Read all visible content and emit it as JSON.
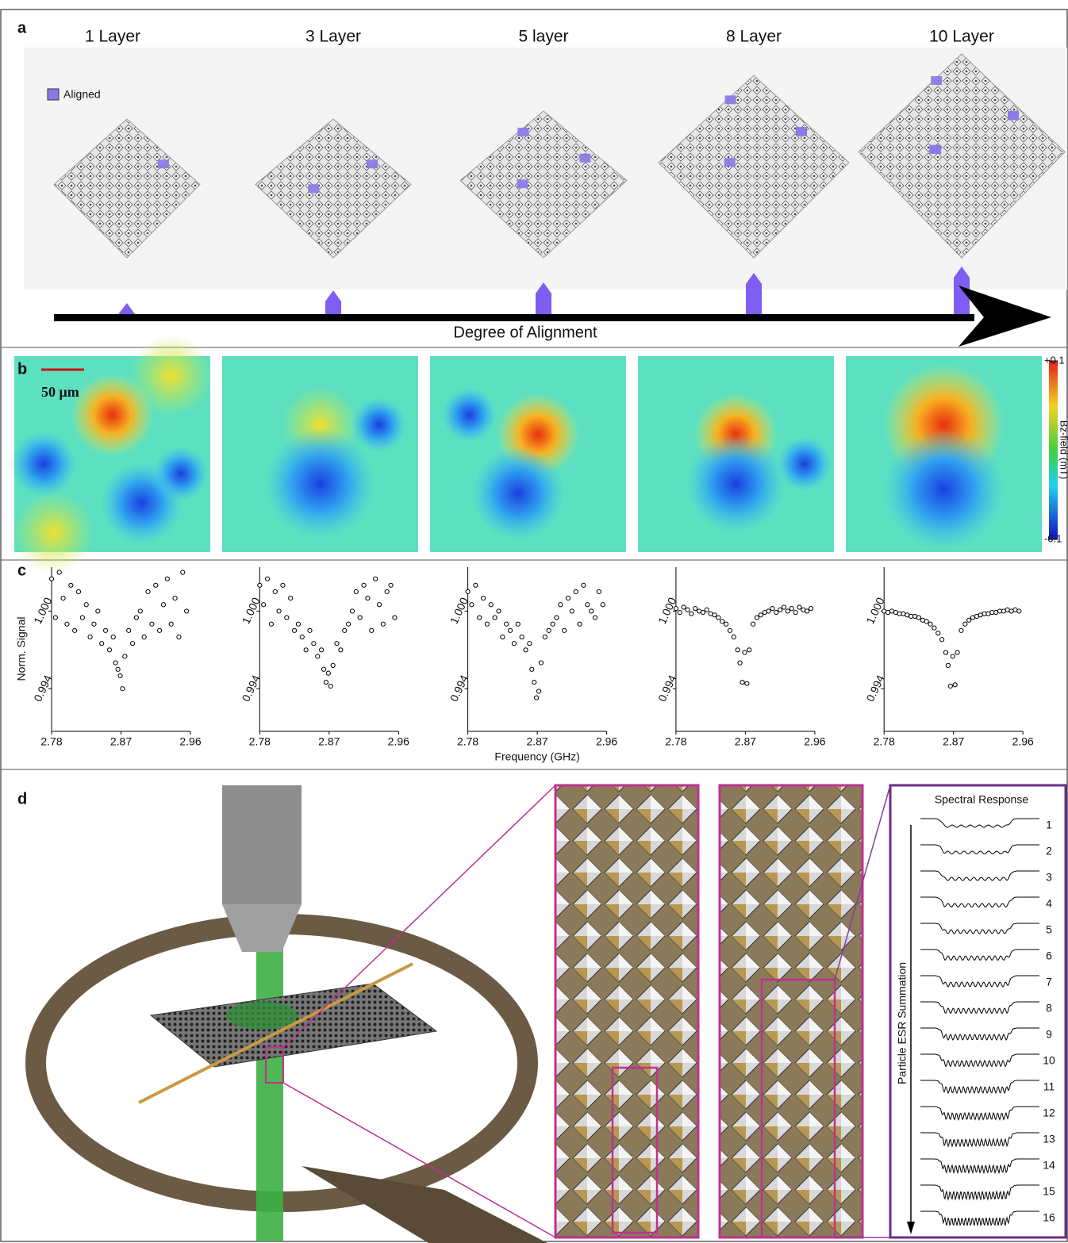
{
  "panel_labels": [
    "a",
    "b",
    "c",
    "d"
  ],
  "alignment": {
    "layers": [
      "1 Layer",
      "3 Layer",
      "5 layer",
      "8 Layer",
      "10 Layer"
    ],
    "legend": "Aligned",
    "axis_label": "Degree of Alignment"
  },
  "field_maps": {
    "scale_bar": "50 μm",
    "colorbar_label": "Bz-field (mT)",
    "colorbar_ticks": [
      {
        "value": 0.1,
        "label": "+0.1"
      },
      -0.1
    ]
  },
  "chart_data": [
    {
      "type": "scatter",
      "ylabel": "Norm. Signal",
      "x": [
        2.78,
        2.785,
        2.79,
        2.795,
        2.8,
        2.805,
        2.81,
        2.815,
        2.82,
        2.825,
        2.83,
        2.835,
        2.84,
        2.845,
        2.85,
        2.855,
        2.86,
        2.863,
        2.866,
        2.869,
        2.872,
        2.875,
        2.88,
        2.885,
        2.89,
        2.895,
        2.9,
        2.905,
        2.91,
        2.915,
        2.92,
        2.925,
        2.93,
        2.935,
        2.94,
        2.945,
        2.95,
        2.955
      ],
      "values": [
        1.0025,
        0.9995,
        1.003,
        1.001,
        0.999,
        1.002,
        0.9985,
        1.0015,
        0.9995,
        1.0005,
        0.998,
        0.999,
        1.0,
        0.9975,
        0.9985,
        0.997,
        0.998,
        0.996,
        0.9955,
        0.995,
        0.994,
        0.9965,
        0.9985,
        0.9975,
        0.9995,
        1.0,
        0.998,
        1.0015,
        0.999,
        1.002,
        0.9985,
        1.0005,
        1.0025,
        0.999,
        1.001,
        0.998,
        1.003,
        1.0
      ],
      "xlim": [
        2.78,
        2.96
      ],
      "ylim": [
        0.9907,
        1.0034
      ],
      "xticks": [
        2.78,
        2.87,
        2.96
      ],
      "yticks": [
        {
          "value": 1.0,
          "label": "1.000"
        },
        0.994
      ]
    },
    {
      "type": "scatter",
      "x": [
        2.78,
        2.785,
        2.79,
        2.795,
        2.8,
        2.805,
        2.81,
        2.815,
        2.82,
        2.825,
        2.83,
        2.835,
        2.84,
        2.845,
        2.85,
        2.855,
        2.86,
        2.863,
        2.866,
        2.869,
        2.872,
        2.875,
        2.88,
        2.885,
        2.89,
        2.895,
        2.9,
        2.905,
        2.91,
        2.915,
        2.92,
        2.925,
        2.93,
        2.935,
        2.94,
        2.945,
        2.95,
        2.955
      ],
      "values": [
        1.002,
        1.0005,
        1.0025,
        0.999,
        1.0015,
        1.0,
        1.002,
        0.9995,
        1.001,
        0.9985,
        0.999,
        0.998,
        0.997,
        0.9985,
        0.9975,
        0.9965,
        0.997,
        0.9955,
        0.9945,
        0.9952,
        0.9942,
        0.9958,
        0.9975,
        0.997,
        0.9985,
        0.999,
        1.0,
        1.0015,
        0.9995,
        1.002,
        1.001,
        0.9985,
        1.0025,
        1.0005,
        0.999,
        1.0015,
        1.002,
        0.9995
      ],
      "xlim": [
        2.78,
        2.96
      ],
      "ylim": [
        0.9907,
        1.0034
      ],
      "xticks": [
        2.78,
        2.87,
        2.96
      ],
      "yticks": [
        {
          "value": 1.0,
          "label": "1.000"
        },
        0.994
      ]
    },
    {
      "type": "scatter",
      "xlabel": "Frequency (GHz)",
      "x": [
        2.78,
        2.785,
        2.79,
        2.795,
        2.8,
        2.805,
        2.81,
        2.815,
        2.82,
        2.825,
        2.83,
        2.835,
        2.84,
        2.845,
        2.85,
        2.855,
        2.86,
        2.863,
        2.866,
        2.869,
        2.872,
        2.875,
        2.88,
        2.885,
        2.89,
        2.895,
        2.9,
        2.905,
        2.91,
        2.915,
        2.92,
        2.925,
        2.93,
        2.935,
        2.94,
        2.945,
        2.95,
        2.955
      ],
      "values": [
        1.0015,
        1.0005,
        1.002,
        0.9995,
        1.001,
        0.999,
        1.0005,
        0.9995,
        1.0,
        0.998,
        0.999,
        0.9985,
        0.9975,
        0.999,
        0.998,
        0.997,
        0.9975,
        0.9955,
        0.9945,
        0.9933,
        0.9938,
        0.996,
        0.998,
        0.9985,
        0.999,
        0.9995,
        1.0005,
        0.9985,
        1.001,
        1.0,
        1.0015,
        0.999,
        1.002,
        1.0005,
        1.0,
        0.9995,
        1.0015,
        1.0005
      ],
      "xlim": [
        2.78,
        2.96
      ],
      "ylim": [
        0.9907,
        1.0034
      ],
      "xticks": [
        2.78,
        2.87,
        2.96
      ],
      "yticks": [
        {
          "value": 1.0,
          "label": "1.000"
        },
        0.994
      ]
    },
    {
      "type": "scatter",
      "x": [
        2.78,
        2.785,
        2.79,
        2.795,
        2.8,
        2.805,
        2.81,
        2.815,
        2.82,
        2.825,
        2.83,
        2.835,
        2.84,
        2.845,
        2.85,
        2.855,
        2.86,
        2.863,
        2.866,
        2.869,
        2.872,
        2.875,
        2.88,
        2.885,
        2.89,
        2.895,
        2.9,
        2.905,
        2.91,
        2.915,
        2.92,
        2.925,
        2.93,
        2.935,
        2.94,
        2.945,
        2.95,
        2.955
      ],
      "values": [
        1.0002,
        0.9999,
        1.0003,
        1.0001,
        0.9998,
        1.0002,
        1.0,
        0.9999,
        1.0001,
        0.9998,
        0.9997,
        0.9995,
        0.9992,
        0.999,
        0.9985,
        0.998,
        0.997,
        0.996,
        0.9945,
        0.9968,
        0.9944,
        0.997,
        0.999,
        0.9995,
        0.9997,
        0.9999,
        1.0,
        1.0002,
        0.9999,
        1.0001,
        1.0003,
        1.0,
        1.0002,
        0.9999,
        1.0003,
        1.0001,
        1.0,
        1.0002
      ],
      "xlim": [
        2.78,
        2.96
      ],
      "ylim": [
        0.9907,
        1.0034
      ],
      "xticks": [
        2.78,
        2.87,
        2.96
      ],
      "yticks": [
        {
          "value": 1.0,
          "label": "1.000"
        },
        0.994
      ]
    },
    {
      "type": "scatter",
      "x": [
        2.78,
        2.785,
        2.79,
        2.795,
        2.8,
        2.805,
        2.81,
        2.815,
        2.82,
        2.825,
        2.83,
        2.835,
        2.84,
        2.845,
        2.85,
        2.855,
        2.86,
        2.863,
        2.866,
        2.869,
        2.872,
        2.875,
        2.88,
        2.885,
        2.89,
        2.895,
        2.9,
        2.905,
        2.91,
        2.915,
        2.92,
        2.925,
        2.93,
        2.935,
        2.94,
        2.945,
        2.95,
        2.955
      ],
      "values": [
        1.0,
        0.9999,
        1.0,
        0.9999,
        0.9998,
        0.9998,
        0.9997,
        0.9996,
        0.9996,
        0.9995,
        0.9993,
        0.9992,
        0.999,
        0.9987,
        0.9983,
        0.9978,
        0.9968,
        0.9958,
        0.9942,
        0.9965,
        0.9943,
        0.9968,
        0.9985,
        0.999,
        0.9993,
        0.9995,
        0.9996,
        0.9997,
        0.9998,
        0.9998,
        0.9999,
        0.9999,
        1.0,
        1.0,
        1.0001,
        1.0,
        1.0001,
        1.0
      ],
      "xlim": [
        2.78,
        2.96
      ],
      "ylim": [
        0.9907,
        1.0034
      ],
      "xticks": [
        2.78,
        2.87,
        2.96
      ],
      "yticks": [
        {
          "value": 1.0,
          "label": "1.000"
        },
        0.994
      ]
    }
  ],
  "setup": {
    "spectral_title": "Spectral Response",
    "trace_numbers": [
      1,
      2,
      3,
      4,
      5,
      6,
      7,
      8,
      9,
      10,
      11,
      12,
      13,
      14,
      15,
      16
    ],
    "axis_label": "Particle ESR Summation"
  }
}
